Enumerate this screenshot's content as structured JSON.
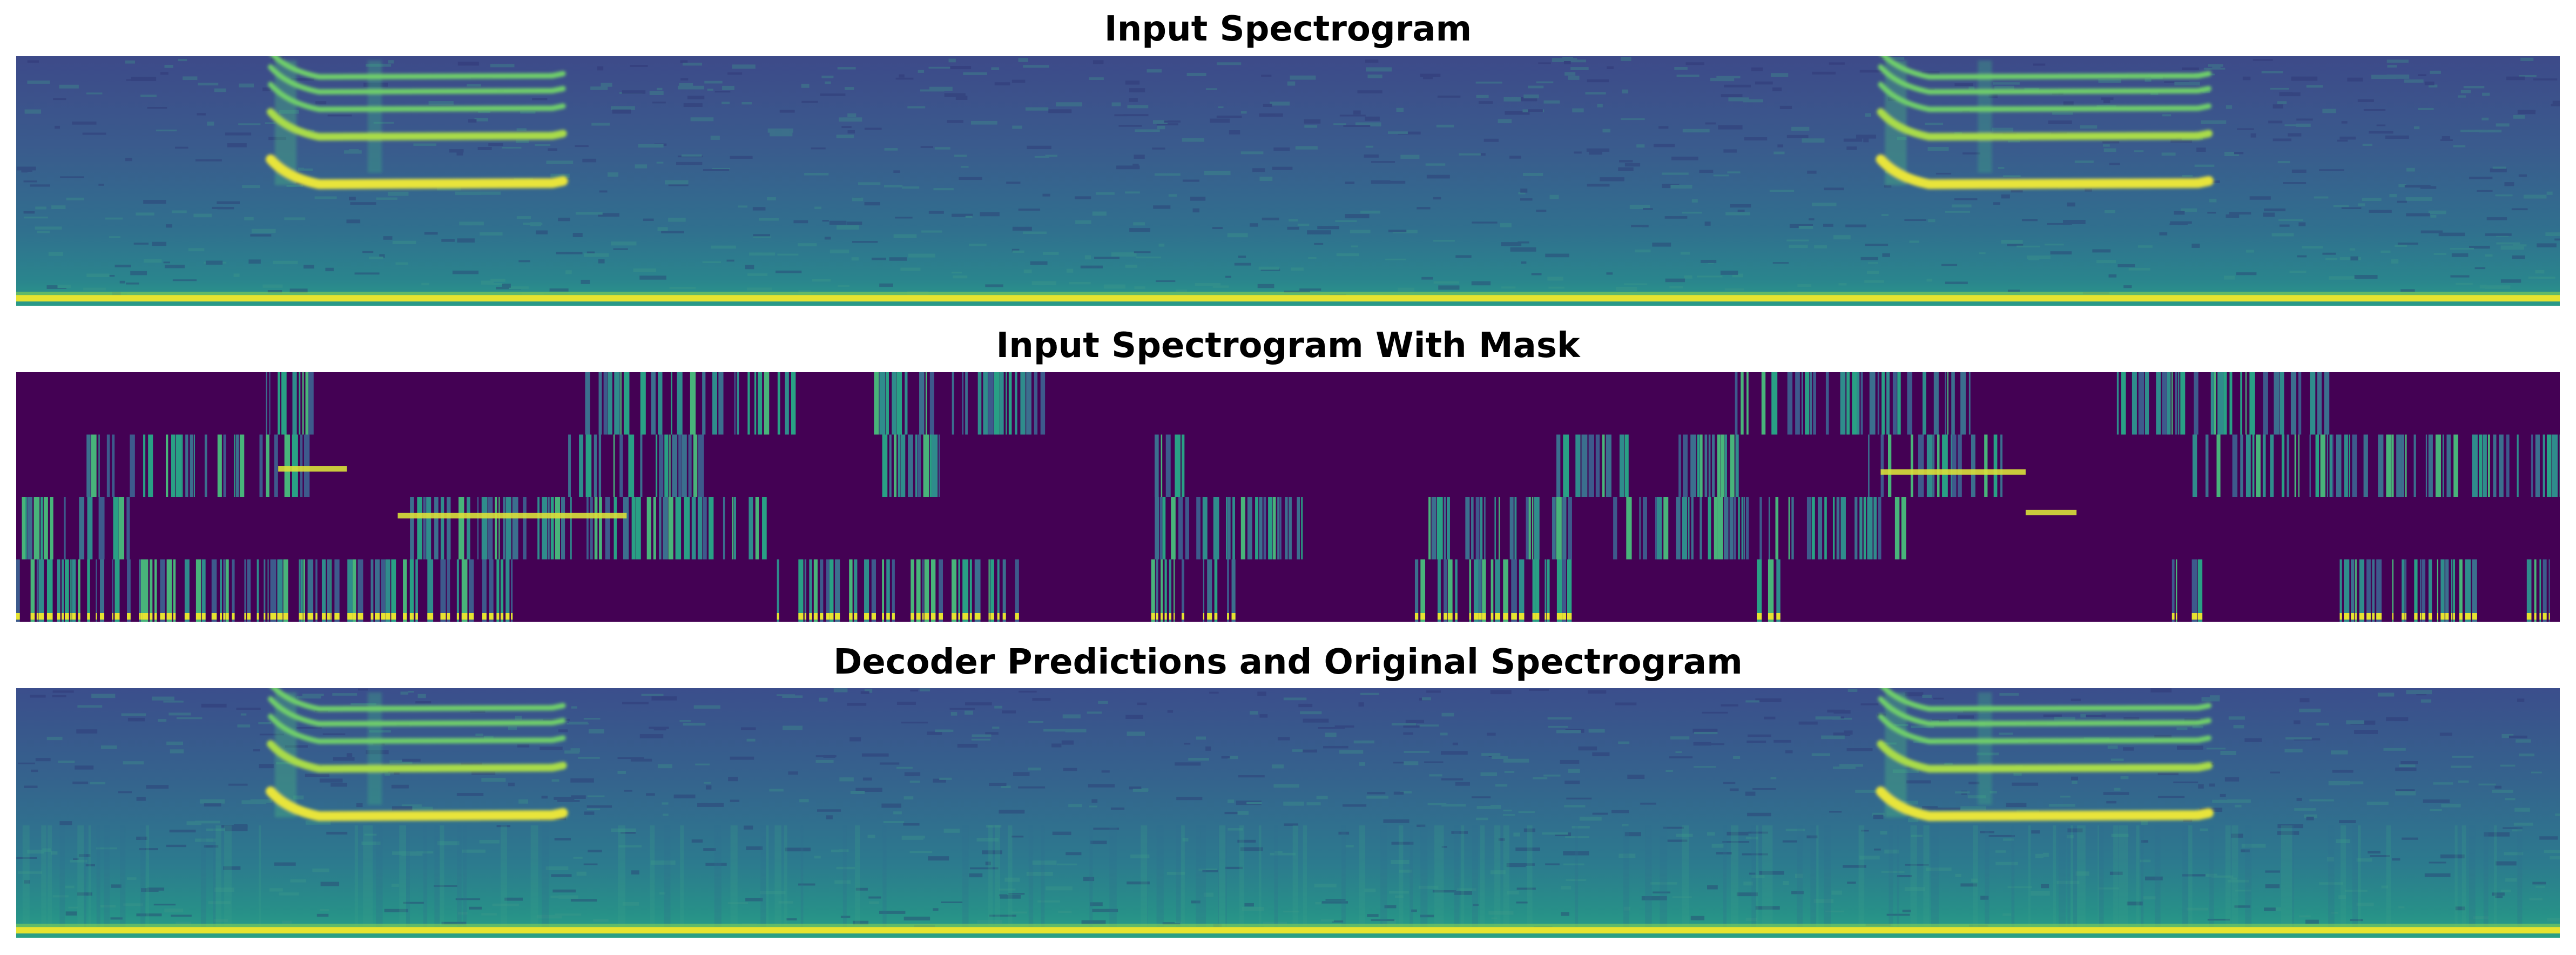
{
  "chart_data": [
    {
      "type": "heatmap",
      "title": "Input Spectrogram",
      "xlabel": "",
      "ylabel": "",
      "axes": "off",
      "colormap": "viridis",
      "colors": [
        "#440154",
        "#3b528b",
        "#21918c",
        "#5ec962",
        "#fde725"
      ],
      "vocalizations": [
        {
          "start": 0.1,
          "end": 0.215
        },
        {
          "start": 0.733,
          "end": 0.862
        }
      ],
      "harmonic_bands": [
        0.5,
        0.31,
        0.2,
        0.13,
        0.07
      ],
      "baseline_band": 0.97
    },
    {
      "type": "heatmap",
      "title": "Input Spectrogram With Mask",
      "xlabel": "",
      "ylabel": "",
      "axes": "off",
      "colormap": "viridis",
      "mask_rows": 4,
      "mask_color": "#440154",
      "visible_fraction": 0.35
    },
    {
      "type": "heatmap",
      "title": "Decoder Predictions and Original Spectrogram",
      "xlabel": "",
      "ylabel": "",
      "axes": "off",
      "colormap": "viridis",
      "vocalizations": [
        {
          "start": 0.1,
          "end": 0.215
        },
        {
          "start": 0.733,
          "end": 0.862
        }
      ],
      "harmonic_bands": [
        0.5,
        0.31,
        0.2,
        0.13,
        0.07
      ],
      "baseline_band": 0.97
    }
  ]
}
